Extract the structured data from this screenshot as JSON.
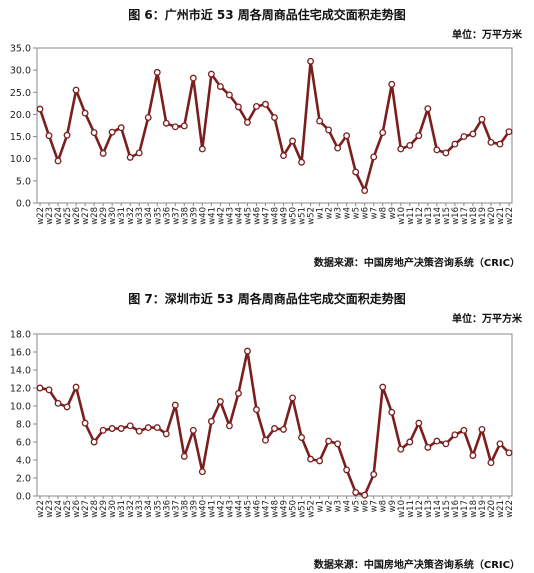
{
  "chart_data": [
    {
      "type": "line",
      "title": "图 6：广州市近 53 周各周商品住宅成交面积走势图",
      "unit": "单位：万平方米",
      "source": "数据来源：中国房地产决策咨询系统（CRIC）",
      "xlabel": "",
      "ylabel": "",
      "ylim": [
        0,
        35
      ],
      "ytick_step": 5,
      "ytick_decimals": 1,
      "grid": false,
      "legend": "none",
      "color": "#7B1E1E",
      "categories": [
        "w22",
        "w23",
        "w24",
        "w25",
        "w26",
        "w27",
        "w28",
        "w29",
        "w30",
        "w31",
        "w32",
        "w33",
        "w34",
        "w35",
        "w36",
        "w37",
        "w38",
        "w39",
        "w40",
        "w41",
        "w42",
        "w43",
        "w44",
        "w45",
        "w46",
        "w47",
        "w48",
        "w49",
        "w50",
        "w51",
        "w52",
        "w1",
        "w2",
        "w3",
        "w4",
        "w5",
        "w6",
        "w7",
        "w8",
        "w9",
        "w10",
        "w11",
        "w12",
        "w13",
        "w14",
        "w15",
        "w16",
        "w17",
        "w18",
        "w19",
        "w20",
        "w21",
        "w22"
      ],
      "values": [
        21.2,
        15.2,
        9.5,
        15.3,
        25.5,
        20.3,
        15.9,
        11.2,
        16.0,
        17.0,
        10.3,
        11.3,
        19.3,
        29.5,
        18.0,
        17.2,
        17.4,
        28.2,
        12.2,
        29.1,
        26.3,
        24.4,
        21.7,
        18.2,
        21.8,
        22.3,
        19.3,
        10.7,
        14.0,
        9.2,
        32.0,
        18.5,
        16.5,
        12.4,
        15.2,
        7.0,
        2.8,
        10.4,
        15.9,
        26.8,
        12.2,
        13.0,
        15.2,
        21.3,
        12.0,
        11.3,
        13.3,
        15.0,
        15.6,
        18.9,
        13.7,
        13.3,
        16.1
      ]
    },
    {
      "type": "line",
      "title": "图 7：深圳市近 53 周各周商品住宅成交面积走势图",
      "unit": "单位：万平方米",
      "source": "数据来源：中国房地产决策咨询系统（CRIC）",
      "xlabel": "",
      "ylabel": "",
      "ylim": [
        0,
        18
      ],
      "ytick_step": 2,
      "ytick_decimals": 1,
      "grid": false,
      "legend": "none",
      "color": "#7B1E1E",
      "categories": [
        "w22",
        "w23",
        "w24",
        "w25",
        "w26",
        "w27",
        "w28",
        "w29",
        "w30",
        "w31",
        "w32",
        "w33",
        "w34",
        "w35",
        "w36",
        "w37",
        "w38",
        "w39",
        "w40",
        "w41",
        "w42",
        "w43",
        "w44",
        "w45",
        "w46",
        "w47",
        "w48",
        "w49",
        "w50",
        "w51",
        "w52",
        "w1",
        "w2",
        "w3",
        "w4",
        "w5",
        "w6",
        "w7",
        "w8",
        "w9",
        "w10",
        "w11",
        "w12",
        "w13",
        "w14",
        "w15",
        "w16",
        "w17",
        "w18",
        "w19",
        "w20",
        "w21",
        "w22"
      ],
      "values": [
        12.0,
        11.8,
        10.3,
        9.9,
        12.1,
        8.1,
        6.0,
        7.3,
        7.5,
        7.5,
        7.8,
        7.2,
        7.6,
        7.6,
        6.9,
        10.1,
        4.4,
        7.3,
        2.7,
        8.3,
        10.5,
        7.8,
        11.4,
        16.1,
        9.6,
        6.2,
        7.5,
        7.4,
        10.9,
        6.5,
        4.1,
        3.9,
        6.1,
        5.8,
        2.9,
        0.4,
        0.1,
        2.4,
        12.1,
        9.3,
        5.2,
        6.0,
        8.1,
        5.4,
        6.1,
        5.8,
        6.8,
        7.3,
        4.5,
        7.4,
        3.7,
        5.8,
        4.8
      ]
    }
  ]
}
